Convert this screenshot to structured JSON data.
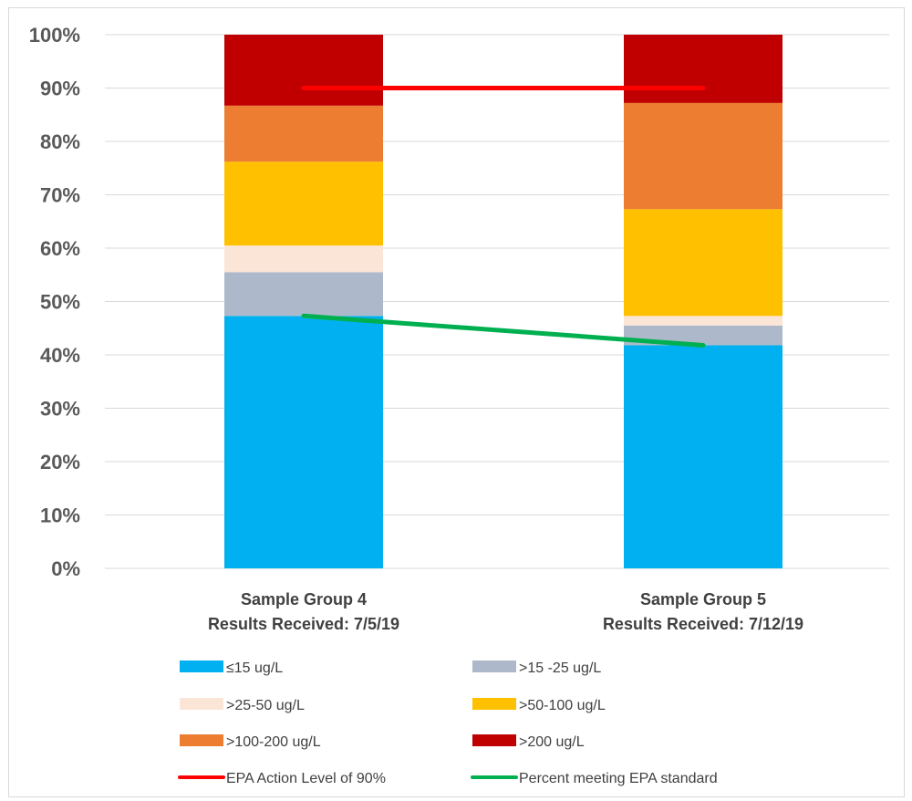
{
  "chart_data": {
    "type": "bar",
    "stacked": true,
    "categories": [
      [
        "Sample Group 4",
        "Results Received:  7/5/19"
      ],
      [
        "Sample Group 5",
        "Results Received:  7/12/19"
      ]
    ],
    "ylim": [
      0,
      100
    ],
    "y_ticks": [
      "0%",
      "10%",
      "20%",
      "30%",
      "40%",
      "50%",
      "60%",
      "70%",
      "80%",
      "90%",
      "100%"
    ],
    "grid": true,
    "legend_position": "bottom",
    "series": [
      {
        "name": "≤15 ug/L",
        "color": "#00b0f0",
        "values": [
          47.3,
          41.8
        ]
      },
      {
        "name": ">15 -25 ug/L",
        "color": "#adb9ca",
        "values": [
          8.2,
          3.7
        ]
      },
      {
        "name": ">25-50 ug/L",
        "color": "#fbe5d6",
        "values": [
          5.0,
          1.8
        ]
      },
      {
        "name": ">50-100 ug/L",
        "color": "#ffc000",
        "values": [
          15.7,
          20.0
        ]
      },
      {
        "name": ">100-200 ug/L",
        "color": "#ed7d31",
        "values": [
          10.5,
          19.9
        ]
      },
      {
        "name": ">200 ug/L",
        "color": "#c00000",
        "values": [
          13.3,
          12.8
        ]
      }
    ],
    "lines": [
      {
        "name": "EPA Action Level of 90%",
        "color": "#ff0000",
        "values": [
          90,
          90
        ]
      },
      {
        "name": "Percent meeting EPA standard",
        "color": "#00b050",
        "values": [
          47.3,
          41.8
        ]
      }
    ]
  }
}
